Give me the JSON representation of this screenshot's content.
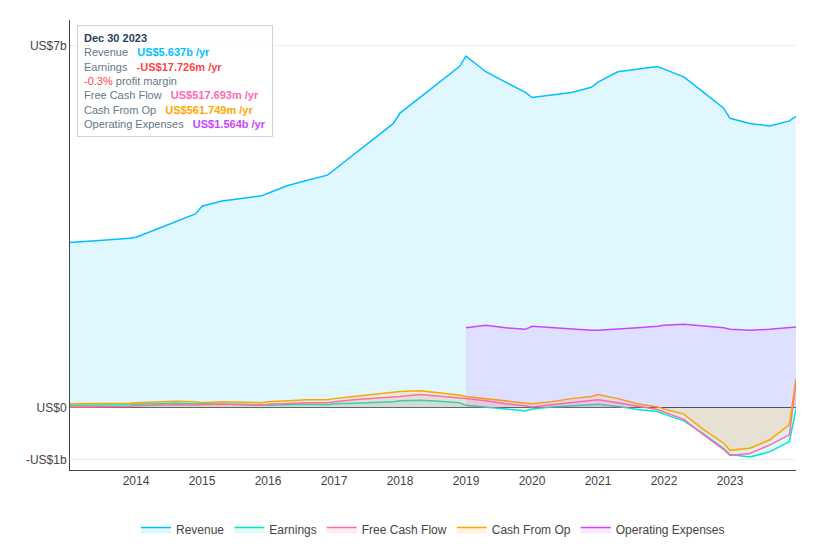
{
  "chart_data": {
    "type": "area",
    "x": [
      2013.0,
      2013.3,
      2013.6,
      2013.9,
      2014.0,
      2014.3,
      2014.6,
      2014.9,
      2015.0,
      2015.3,
      2015.6,
      2015.9,
      2016.0,
      2016.3,
      2016.6,
      2016.9,
      2017.0,
      2017.3,
      2017.6,
      2017.9,
      2018.0,
      2018.3,
      2018.6,
      2018.9,
      2019.0,
      2019.3,
      2019.6,
      2019.9,
      2020.0,
      2020.3,
      2020.6,
      2020.9,
      2021.0,
      2021.3,
      2021.6,
      2021.9,
      2022.0,
      2022.3,
      2022.6,
      2022.9,
      2023.0,
      2023.3,
      2023.6,
      2023.9,
      2024.0
    ],
    "series": [
      {
        "name": "Revenue",
        "color": "#00bfff",
        "values": [
          3.2,
          3.22,
          3.25,
          3.28,
          3.3,
          3.45,
          3.6,
          3.75,
          3.9,
          4.0,
          4.05,
          4.1,
          4.15,
          4.3,
          4.4,
          4.5,
          4.6,
          4.9,
          5.2,
          5.5,
          5.7,
          6.0,
          6.3,
          6.6,
          6.8,
          6.5,
          6.3,
          6.1,
          6.0,
          6.05,
          6.1,
          6.2,
          6.3,
          6.5,
          6.55,
          6.6,
          6.55,
          6.4,
          6.1,
          5.8,
          5.6,
          5.5,
          5.45,
          5.55,
          5.637
        ]
      },
      {
        "name": "Earnings",
        "color": "#00e5cc",
        "values": [
          0.05,
          0.05,
          0.06,
          0.06,
          0.07,
          0.08,
          0.09,
          0.08,
          0.08,
          0.07,
          0.07,
          0.06,
          0.05,
          0.06,
          0.07,
          0.06,
          0.08,
          0.09,
          0.1,
          0.12,
          0.14,
          0.15,
          0.13,
          0.1,
          0.05,
          0.02,
          -0.02,
          -0.06,
          -0.02,
          0.02,
          0.04,
          0.06,
          0.07,
          0.03,
          -0.03,
          -0.07,
          -0.12,
          -0.25,
          -0.5,
          -0.78,
          -0.9,
          -0.95,
          -0.85,
          -0.65,
          -0.0177
        ]
      },
      {
        "name": "Free Cash Flow",
        "color": "#ff69b4",
        "values": [
          0.02,
          0.02,
          0.03,
          0.03,
          0.04,
          0.05,
          0.06,
          0.05,
          0.06,
          0.07,
          0.06,
          0.05,
          0.07,
          0.09,
          0.1,
          0.1,
          0.12,
          0.16,
          0.18,
          0.2,
          0.22,
          0.26,
          0.23,
          0.2,
          0.18,
          0.14,
          0.08,
          0.04,
          0.02,
          0.06,
          0.1,
          0.14,
          0.16,
          0.1,
          0.03,
          -0.03,
          -0.08,
          -0.22,
          -0.52,
          -0.8,
          -0.92,
          -0.88,
          -0.72,
          -0.52,
          0.5177
        ]
      },
      {
        "name": "Cash From Op",
        "color": "#ffa500",
        "values": [
          0.08,
          0.08,
          0.09,
          0.09,
          0.1,
          0.11,
          0.13,
          0.12,
          0.1,
          0.12,
          0.11,
          0.1,
          0.12,
          0.14,
          0.16,
          0.16,
          0.18,
          0.22,
          0.26,
          0.3,
          0.32,
          0.33,
          0.29,
          0.25,
          0.22,
          0.18,
          0.13,
          0.1,
          0.08,
          0.12,
          0.18,
          0.22,
          0.26,
          0.18,
          0.08,
          0.02,
          -0.02,
          -0.12,
          -0.42,
          -0.68,
          -0.82,
          -0.78,
          -0.62,
          -0.32,
          0.5617
        ]
      },
      {
        "name": "Operating Expenses",
        "color": "#cc44ff",
        "values": [
          null,
          null,
          null,
          null,
          null,
          null,
          null,
          null,
          null,
          null,
          null,
          null,
          null,
          null,
          null,
          null,
          null,
          null,
          null,
          null,
          null,
          null,
          null,
          null,
          1.55,
          1.6,
          1.55,
          1.52,
          1.58,
          1.55,
          1.52,
          1.5,
          1.5,
          1.52,
          1.55,
          1.58,
          1.6,
          1.62,
          1.58,
          1.55,
          1.52,
          1.5,
          1.52,
          1.55,
          1.564
        ]
      }
    ],
    "xlim": [
      2013.0,
      2024.0
    ],
    "xticks": [
      2014,
      2015,
      2016,
      2017,
      2018,
      2019,
      2020,
      2021,
      2022,
      2023
    ],
    "ylim": [
      -1.2,
      7.5
    ],
    "yticks": [
      {
        "value": -1.0,
        "label": "-US$1b"
      },
      {
        "value": 0,
        "label": "US$0"
      },
      {
        "value": 7.0,
        "label": "US$7b"
      }
    ],
    "grid": true,
    "legend": "bottom",
    "annotations": [
      {
        "title": "Dec 30 2023",
        "rows": [
          {
            "label": "Revenue",
            "value": "US$5.637b /yr",
            "color": "#00bfff"
          },
          {
            "label": "Earnings",
            "value": "-US$17.726m /yr",
            "color": "#ff4444",
            "extra": [
              {
                "text": "-0.3%",
                "color": "#ff4444"
              },
              {
                "text": "profit margin"
              }
            ]
          },
          {
            "label": "Free Cash Flow",
            "value": "US$517.693m /yr",
            "color": "#ff69b4"
          },
          {
            "label": "Cash From Op",
            "value": "US$561.749m /yr",
            "color": "#ffa500"
          },
          {
            "label": "Operating Expenses",
            "value": "US$1.564b /yr",
            "color": "#cc44ff"
          }
        ]
      }
    ]
  }
}
